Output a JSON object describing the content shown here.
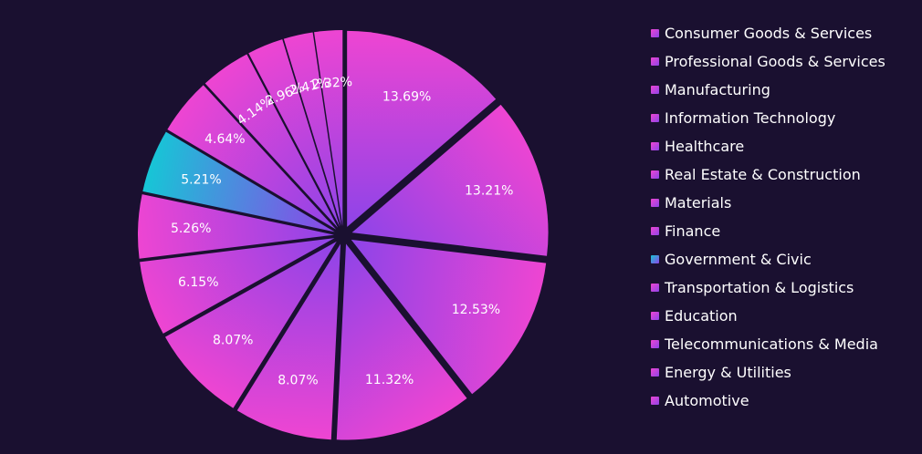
{
  "chart_data": {
    "type": "pie",
    "title": "",
    "slices": [
      {
        "label": "Consumer Goods & Services",
        "value": 13.69,
        "display": "13.69%",
        "color_from": "#ee45d2",
        "color_to": "#8e44e8"
      },
      {
        "label": "Professional Goods & Services",
        "value": 13.21,
        "display": "13.21%",
        "color_from": "#ee45d2",
        "color_to": "#8e44e8"
      },
      {
        "label": "Manufacturing",
        "value": 12.53,
        "display": "12.53%",
        "color_from": "#ee45d2",
        "color_to": "#8e44e8"
      },
      {
        "label": "Information Technology",
        "value": 11.32,
        "display": "11.32%",
        "color_from": "#ee45d2",
        "color_to": "#8e44e8"
      },
      {
        "label": "Healthcare",
        "value": 8.07,
        "display": "8.07%",
        "color_from": "#ee45d2",
        "color_to": "#8e44e8"
      },
      {
        "label": "Real Estate & Construction",
        "value": 8.07,
        "display": "8.07%",
        "color_from": "#ee45d2",
        "color_to": "#8e44e8"
      },
      {
        "label": "Materials",
        "value": 6.15,
        "display": "6.15%",
        "color_from": "#ee45d2",
        "color_to": "#8e44e8"
      },
      {
        "label": "Finance",
        "value": 5.26,
        "display": "5.26%",
        "color_from": "#ee45d2",
        "color_to": "#8e44e8"
      },
      {
        "label": "Government & Civic",
        "value": 5.21,
        "display": "5.21%",
        "color_from": "#16c6d6",
        "color_to": "#8e44e8"
      },
      {
        "label": "Transportation & Logistics",
        "value": 4.64,
        "display": "4.64%",
        "color_from": "#ee45d2",
        "color_to": "#8e44e8"
      },
      {
        "label": "Education",
        "value": 4.14,
        "display": "4.14%",
        "color_from": "#ee45d2",
        "color_to": "#8e44e8"
      },
      {
        "label": "Telecommunications & Media",
        "value": 2.96,
        "display": "2.96%",
        "color_from": "#ee45d2",
        "color_to": "#8e44e8"
      },
      {
        "label": "Energy & Utilities",
        "value": 2.41,
        "display": "2.41%",
        "color_from": "#ee45d2",
        "color_to": "#8e44e8"
      },
      {
        "label": "Automotive",
        "value": 2.32,
        "display": "2.32%",
        "color_from": "#ee45d2",
        "color_to": "#8e44e8"
      }
    ],
    "legend_position": "right",
    "start_angle": "12 o'clock",
    "direction": "clockwise",
    "exploded": true
  },
  "colors": {
    "background": "#1a1030",
    "label_text": "#ffffff"
  }
}
